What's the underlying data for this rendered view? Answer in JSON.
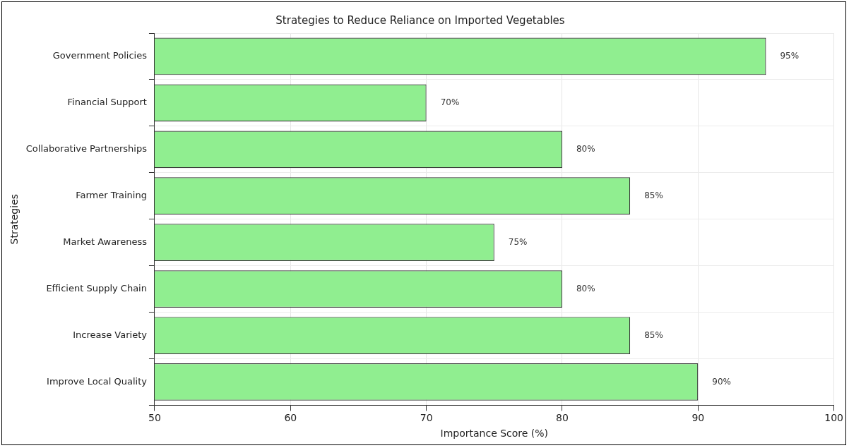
{
  "chart_data": {
    "type": "bar",
    "orientation": "horizontal",
    "title": "Strategies to Reduce Reliance on Imported Vegetables",
    "xlabel": "Importance Score (%)",
    "ylabel": "Strategies",
    "categories": [
      "Government Policies",
      "Financial Support",
      "Collaborative Partnerships",
      "Farmer Training",
      "Market Awareness",
      "Efficient Supply Chain",
      "Increase Variety",
      "Improve Local Quality"
    ],
    "values": [
      95,
      70,
      80,
      85,
      75,
      80,
      85,
      90
    ],
    "value_labels": [
      "95%",
      "70%",
      "80%",
      "85%",
      "75%",
      "80%",
      "85%",
      "90%"
    ],
    "color": "#90ee90",
    "xlim": [
      50,
      100
    ],
    "xticks": [
      50,
      60,
      70,
      80,
      90,
      100
    ],
    "grid": true
  }
}
